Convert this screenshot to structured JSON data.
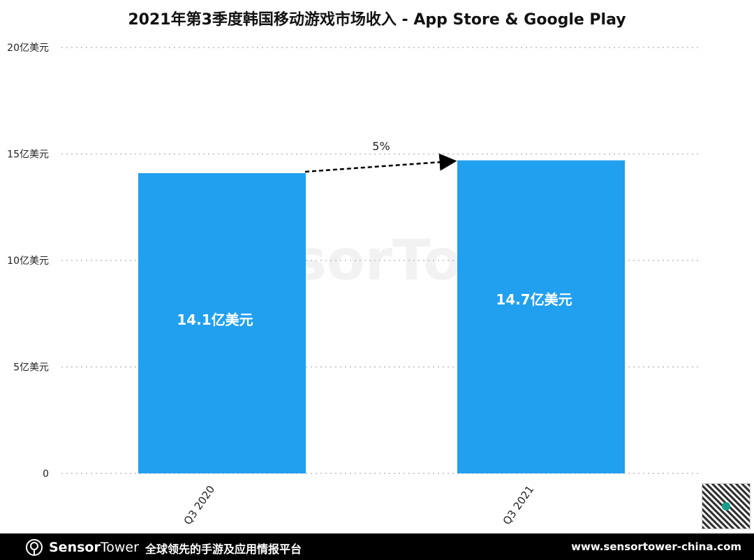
{
  "chart_data": {
    "type": "bar",
    "title": "2021年第3季度韩国移动游戏市场收入 - App Store & Google Play",
    "categories": [
      "Q3 2020",
      "Q3 2021"
    ],
    "values": [
      14.1,
      14.7
    ],
    "data_labels": [
      "14.1亿美元",
      "14.7亿美元"
    ],
    "ylim": [
      0,
      20
    ],
    "yticks": [
      0,
      5,
      10,
      15,
      20
    ],
    "ytick_labels": [
      "0",
      "5亿美元",
      "10亿美元",
      "15亿美元",
      "20亿美元"
    ],
    "xlabel": "",
    "ylabel": "",
    "grid": true,
    "annotation": "5%",
    "bar_color": "#21a0f0"
  },
  "footer": {
    "brand_bold": "Sensor",
    "brand_light": "Tower",
    "slogan": "全球领先的手游及应用情报平台",
    "url": "www.sensortower-china.com"
  },
  "watermark": "SensorTower"
}
